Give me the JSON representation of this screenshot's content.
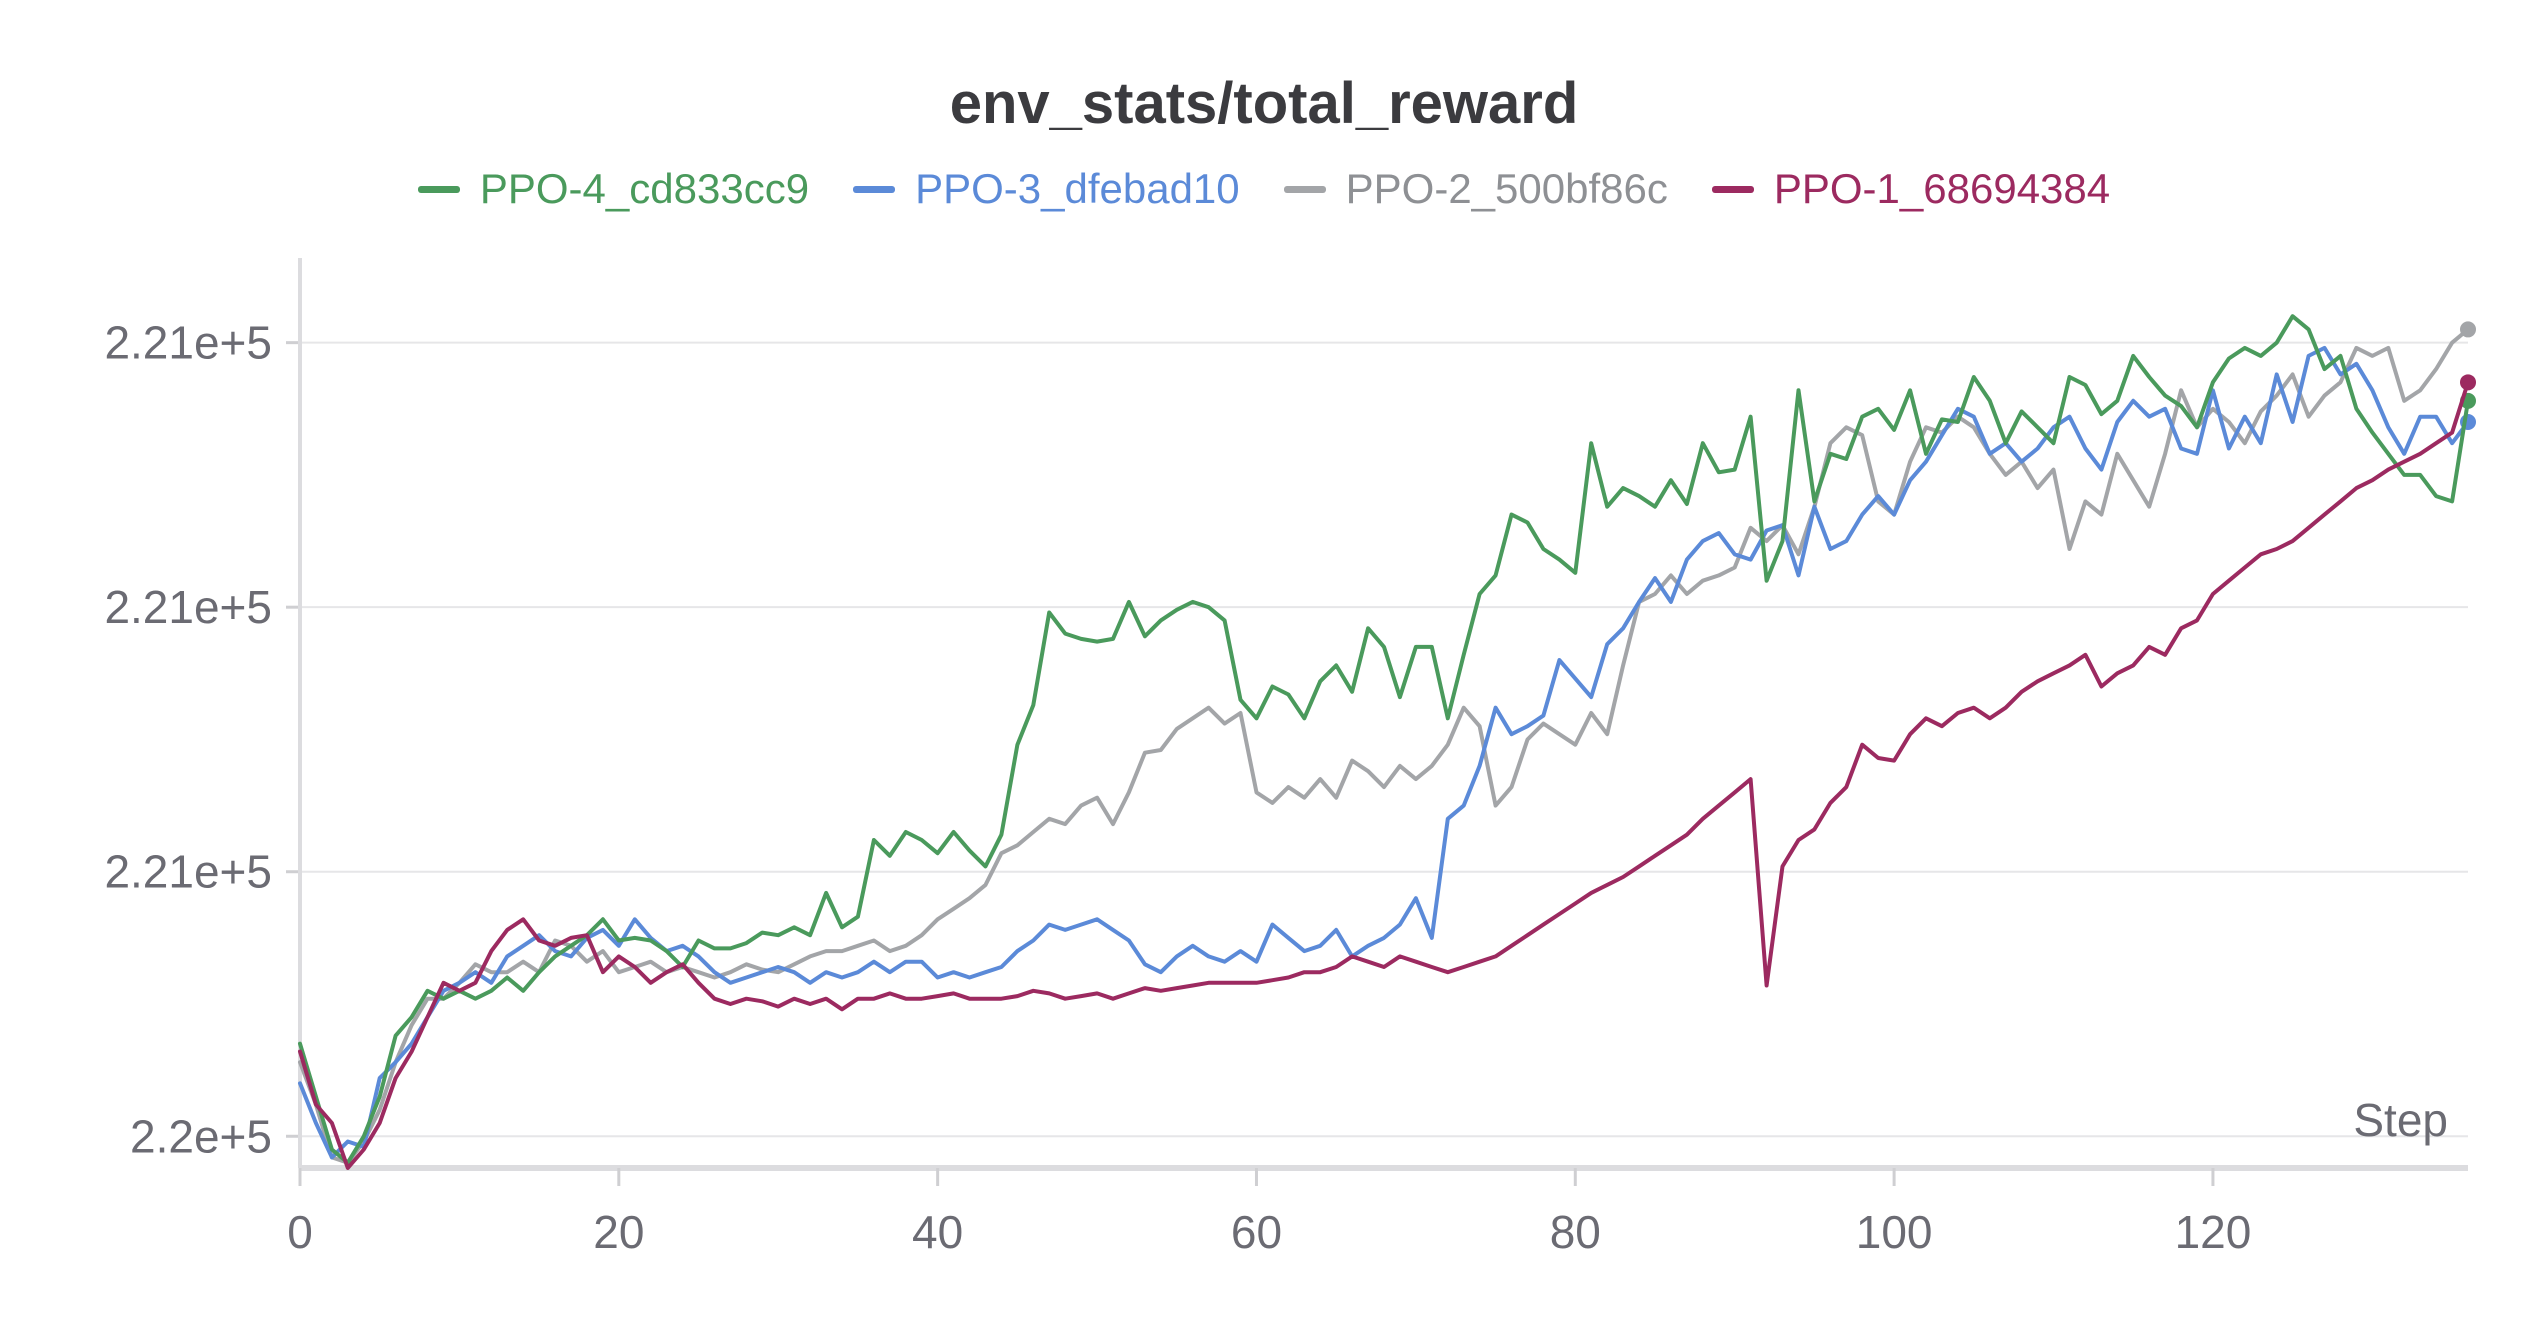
{
  "chart_data": {
    "type": "line",
    "title": "env_stats/total_reward",
    "xlabel": "Step",
    "ylabel": "",
    "xlim": [
      0,
      136
    ],
    "x_ticks": [
      0,
      20,
      40,
      60,
      80,
      100,
      120
    ],
    "y_ticks": [
      {
        "value": 0.0,
        "label": "2.2e+5"
      },
      {
        "value": 1.0,
        "label": "2.21e+5"
      },
      {
        "value": 2.0,
        "label": "2.21e+5"
      },
      {
        "value": 3.0,
        "label": "2.21e+5"
      }
    ],
    "y_unit_note": "y values in tick units (0 = 2.2e+5 tick, 1 per labeled tick)",
    "ylim": [
      -0.12,
      3.32
    ],
    "grid": true,
    "legend_position": "top-center",
    "series": [
      {
        "name": "PPO-4_cd833cc9",
        "color": "#4a9a5c",
        "values": [
          0.35,
          0.15,
          -0.05,
          -0.1,
          0.0,
          0.15,
          0.38,
          0.45,
          0.55,
          0.52,
          0.55,
          0.52,
          0.55,
          0.6,
          0.55,
          0.62,
          0.68,
          0.72,
          0.76,
          0.82,
          0.74,
          0.75,
          0.74,
          0.7,
          0.64,
          0.74,
          0.71,
          0.71,
          0.73,
          0.77,
          0.76,
          0.79,
          0.76,
          0.92,
          0.79,
          0.83,
          1.12,
          1.06,
          1.15,
          1.12,
          1.07,
          1.15,
          1.08,
          1.02,
          1.14,
          1.48,
          1.63,
          1.98,
          1.9,
          1.88,
          1.87,
          1.88,
          2.02,
          1.89,
          1.95,
          1.99,
          2.02,
          2.0,
          1.95,
          1.65,
          1.58,
          1.7,
          1.67,
          1.58,
          1.72,
          1.78,
          1.68,
          1.92,
          1.85,
          1.66,
          1.85,
          1.85,
          1.58,
          1.82,
          2.05,
          2.12,
          2.35,
          2.32,
          2.22,
          2.18,
          2.13,
          2.62,
          2.38,
          2.45,
          2.42,
          2.38,
          2.48,
          2.39,
          2.62,
          2.51,
          2.52,
          2.72,
          2.1,
          2.25,
          2.82,
          2.4,
          2.58,
          2.56,
          2.72,
          2.75,
          2.67,
          2.82,
          2.58,
          2.71,
          2.7,
          2.87,
          2.78,
          2.62,
          2.74,
          2.68,
          2.62,
          2.87,
          2.84,
          2.73,
          2.78,
          2.95,
          2.87,
          2.8,
          2.76,
          2.68,
          2.85,
          2.94,
          2.98,
          2.95,
          3.0,
          3.1,
          3.05,
          2.9,
          2.95,
          2.75,
          2.66,
          2.58,
          2.5,
          2.5,
          2.42,
          2.4,
          2.78
        ]
      },
      {
        "name": "PPO-3_dfebad10",
        "color": "#5b8ad8",
        "values": [
          0.2,
          0.05,
          -0.08,
          -0.02,
          -0.04,
          0.22,
          0.28,
          0.35,
          0.45,
          0.55,
          0.58,
          0.62,
          0.58,
          0.68,
          0.72,
          0.76,
          0.7,
          0.68,
          0.75,
          0.78,
          0.72,
          0.82,
          0.75,
          0.7,
          0.72,
          0.68,
          0.62,
          0.58,
          0.6,
          0.62,
          0.64,
          0.62,
          0.58,
          0.62,
          0.6,
          0.62,
          0.66,
          0.62,
          0.66,
          0.66,
          0.6,
          0.62,
          0.6,
          0.62,
          0.64,
          0.7,
          0.74,
          0.8,
          0.78,
          0.8,
          0.82,
          0.78,
          0.74,
          0.65,
          0.62,
          0.68,
          0.72,
          0.68,
          0.66,
          0.7,
          0.66,
          0.8,
          0.75,
          0.7,
          0.72,
          0.78,
          0.68,
          0.72,
          0.75,
          0.8,
          0.9,
          0.75,
          1.2,
          1.25,
          1.4,
          1.62,
          1.52,
          1.55,
          1.59,
          1.8,
          1.73,
          1.66,
          1.86,
          1.92,
          2.02,
          2.11,
          2.02,
          2.18,
          2.25,
          2.28,
          2.2,
          2.18,
          2.29,
          2.31,
          2.12,
          2.38,
          2.22,
          2.25,
          2.35,
          2.42,
          2.35,
          2.48,
          2.55,
          2.65,
          2.75,
          2.72,
          2.58,
          2.62,
          2.55,
          2.6,
          2.68,
          2.72,
          2.6,
          2.52,
          2.7,
          2.78,
          2.72,
          2.75,
          2.6,
          2.58,
          2.82,
          2.6,
          2.72,
          2.62,
          2.88,
          2.7,
          2.95,
          2.98,
          2.88,
          2.92,
          2.82,
          2.68,
          2.58,
          2.72,
          2.72,
          2.62,
          2.7
        ]
      },
      {
        "name": "PPO-2_500bf86c",
        "color": "#a3a5a8",
        "values": [
          0.28,
          0.12,
          -0.08,
          -0.1,
          -0.02,
          0.1,
          0.28,
          0.42,
          0.52,
          0.52,
          0.58,
          0.65,
          0.62,
          0.62,
          0.66,
          0.62,
          0.74,
          0.72,
          0.66,
          0.7,
          0.62,
          0.64,
          0.66,
          0.62,
          0.64,
          0.62,
          0.6,
          0.62,
          0.65,
          0.63,
          0.62,
          0.65,
          0.68,
          0.7,
          0.7,
          0.72,
          0.74,
          0.7,
          0.72,
          0.76,
          0.82,
          0.86,
          0.9,
          0.95,
          1.07,
          1.1,
          1.15,
          1.2,
          1.18,
          1.25,
          1.28,
          1.18,
          1.3,
          1.45,
          1.46,
          1.54,
          1.58,
          1.62,
          1.56,
          1.6,
          1.3,
          1.26,
          1.32,
          1.28,
          1.35,
          1.28,
          1.42,
          1.38,
          1.32,
          1.4,
          1.35,
          1.4,
          1.48,
          1.62,
          1.55,
          1.25,
          1.32,
          1.5,
          1.56,
          1.52,
          1.48,
          1.6,
          1.52,
          1.78,
          2.02,
          2.05,
          2.12,
          2.05,
          2.1,
          2.12,
          2.15,
          2.3,
          2.25,
          2.31,
          2.2,
          2.38,
          2.62,
          2.68,
          2.65,
          2.4,
          2.35,
          2.55,
          2.68,
          2.66,
          2.72,
          2.68,
          2.58,
          2.5,
          2.55,
          2.45,
          2.52,
          2.22,
          2.4,
          2.35,
          2.58,
          2.48,
          2.38,
          2.58,
          2.82,
          2.68,
          2.75,
          2.7,
          2.62,
          2.74,
          2.8,
          2.88,
          2.72,
          2.8,
          2.85,
          2.98,
          2.95,
          2.98,
          2.78,
          2.82,
          2.9,
          3.0,
          3.05
        ]
      },
      {
        "name": "PPO-1_68694384",
        "color": "#9c2a60",
        "values": [
          0.32,
          0.12,
          0.05,
          -0.12,
          -0.05,
          0.05,
          0.22,
          0.32,
          0.45,
          0.58,
          0.55,
          0.58,
          0.7,
          0.78,
          0.82,
          0.74,
          0.72,
          0.75,
          0.76,
          0.62,
          0.68,
          0.64,
          0.58,
          0.62,
          0.65,
          0.58,
          0.52,
          0.5,
          0.52,
          0.51,
          0.49,
          0.52,
          0.5,
          0.52,
          0.48,
          0.52,
          0.52,
          0.54,
          0.52,
          0.52,
          0.53,
          0.54,
          0.52,
          0.52,
          0.52,
          0.53,
          0.55,
          0.54,
          0.52,
          0.53,
          0.54,
          0.52,
          0.54,
          0.56,
          0.55,
          0.56,
          0.57,
          0.58,
          0.58,
          0.58,
          0.58,
          0.59,
          0.6,
          0.62,
          0.62,
          0.64,
          0.68,
          0.66,
          0.64,
          0.68,
          0.66,
          0.64,
          0.62,
          0.64,
          0.66,
          0.68,
          0.72,
          0.76,
          0.8,
          0.84,
          0.88,
          0.92,
          0.95,
          0.98,
          1.02,
          1.06,
          1.1,
          1.14,
          1.2,
          1.25,
          1.3,
          1.35,
          0.57,
          1.02,
          1.12,
          1.16,
          1.26,
          1.32,
          1.48,
          1.43,
          1.42,
          1.52,
          1.58,
          1.55,
          1.6,
          1.62,
          1.58,
          1.62,
          1.68,
          1.72,
          1.75,
          1.78,
          1.82,
          1.7,
          1.75,
          1.78,
          1.85,
          1.82,
          1.92,
          1.95,
          2.05,
          2.1,
          2.15,
          2.2,
          2.22,
          2.25,
          2.3,
          2.35,
          2.4,
          2.45,
          2.48,
          2.52,
          2.55,
          2.58,
          2.62,
          2.66,
          2.85
        ]
      }
    ]
  }
}
